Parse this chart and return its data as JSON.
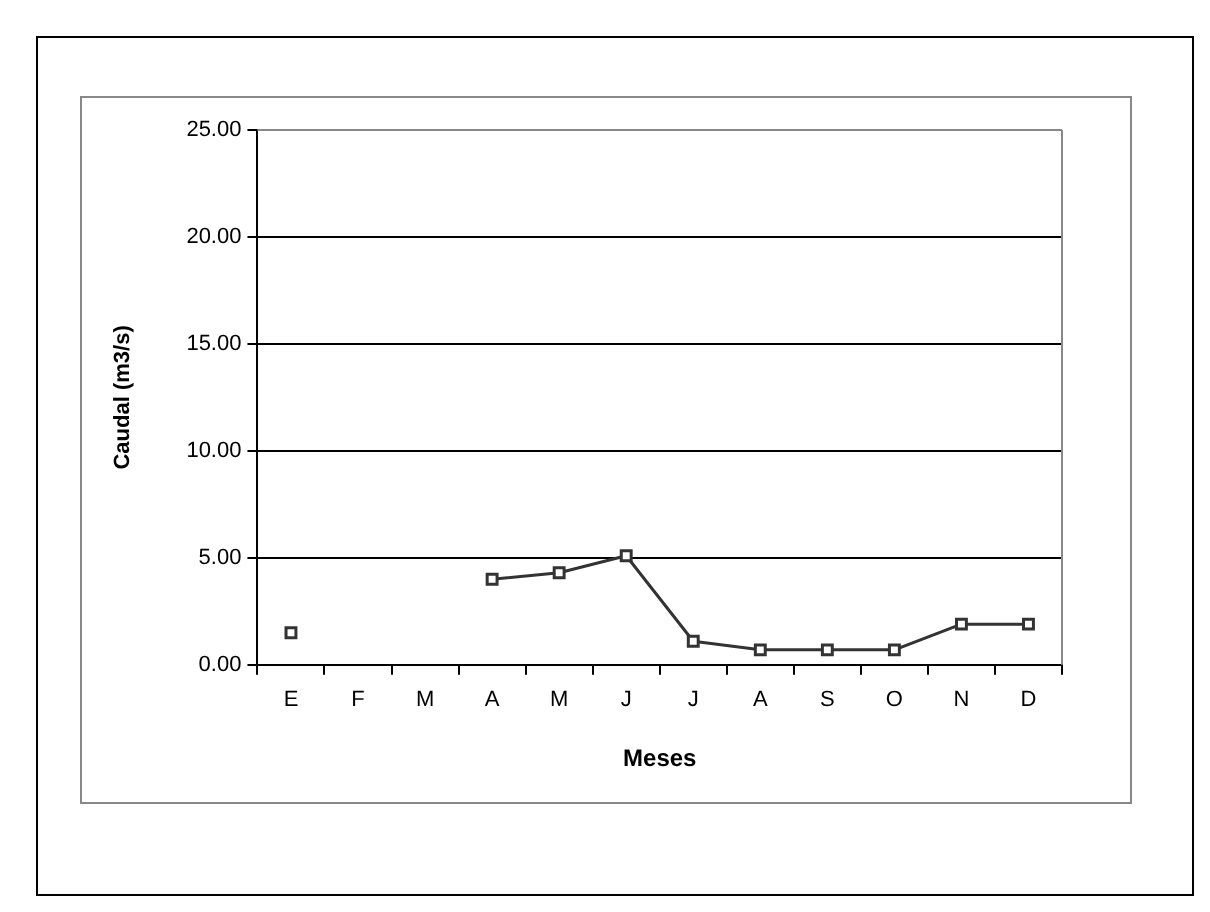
{
  "chart_data": {
    "type": "line",
    "xlabel": "Meses",
    "ylabel": "Caudal (m3/s)",
    "categories": [
      "E",
      "F",
      "M",
      "A",
      "M",
      "J",
      "J",
      "A",
      "S",
      "O",
      "N",
      "D"
    ],
    "series": [
      {
        "color": "#333333",
        "values": [
          1.5,
          null,
          null,
          4.0,
          4.3,
          5.1,
          1.1,
          0.7,
          0.7,
          0.7,
          1.9,
          1.9
        ]
      }
    ],
    "ylim": [
      0,
      25
    ],
    "yticks": [
      {
        "value": 0,
        "label": "0.00"
      },
      {
        "value": 5,
        "label": "5.00"
      },
      {
        "value": 10,
        "label": "10.00"
      },
      {
        "value": 15,
        "label": "15.00"
      },
      {
        "value": 20,
        "label": "20.00"
      },
      {
        "value": 25,
        "label": "25.00"
      }
    ],
    "grid": "y",
    "legend": false,
    "marker": "square",
    "line_style": "solid"
  }
}
